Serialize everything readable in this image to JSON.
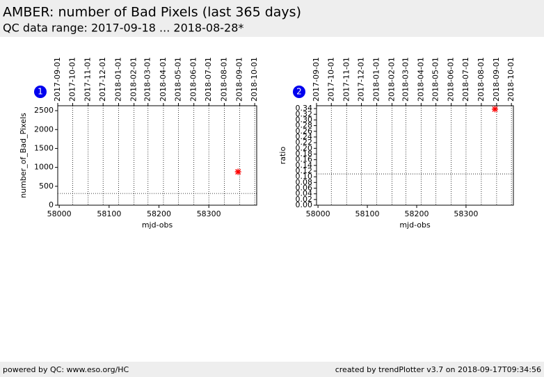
{
  "header": {
    "title": "AMBER: number of Bad Pixels (last 365 days)",
    "subtitle": "QC data range: 2017-09-18 ... 2018-08-28*"
  },
  "footer": {
    "left": "powered by QC: www.eso.org/HC",
    "right": "created by trendPlotter v3.7 on 2018-09-17T09:34:56"
  },
  "chart_data": [
    {
      "type": "scatter",
      "badge": "1",
      "xlabel": "mjd-obs",
      "ylabel": "number_of_Bad_Pixels",
      "xlim": [
        57997,
        58396
      ],
      "xticks": [
        58000,
        58100,
        58200,
        58300
      ],
      "x2ticks": [
        {
          "value": 57997,
          "label": "2017-09-01"
        },
        {
          "value": 58027,
          "label": "2017-10-01"
        },
        {
          "value": 58058,
          "label": "2017-11-01"
        },
        {
          "value": 58088,
          "label": "2017-12-01"
        },
        {
          "value": 58119,
          "label": "2018-01-01"
        },
        {
          "value": 58150,
          "label": "2018-02-01"
        },
        {
          "value": 58178,
          "label": "2018-03-01"
        },
        {
          "value": 58209,
          "label": "2018-04-01"
        },
        {
          "value": 58239,
          "label": "2018-05-01"
        },
        {
          "value": 58270,
          "label": "2018-06-01"
        },
        {
          "value": 58300,
          "label": "2018-07-01"
        },
        {
          "value": 58331,
          "label": "2018-08-01"
        },
        {
          "value": 58362,
          "label": "2018-09-01"
        },
        {
          "value": 58392,
          "label": "2018-10-01"
        }
      ],
      "ylim": [
        0,
        2630
      ],
      "yticks": [
        0,
        500,
        1000,
        1500,
        2000,
        2500
      ],
      "reference_line": 310,
      "grid": true,
      "color": "#ff0000",
      "x": [
        58358.6
      ],
      "values": [
        882
      ]
    },
    {
      "type": "scatter",
      "badge": "2",
      "xlabel": "mjd-obs",
      "ylabel": "ratio",
      "xlim": [
        57997,
        58396
      ],
      "xticks": [
        58000,
        58100,
        58200,
        58300
      ],
      "x2ticks": [
        {
          "value": 57997,
          "label": "2017-09-01"
        },
        {
          "value": 58027,
          "label": "2017-10-01"
        },
        {
          "value": 58058,
          "label": "2017-11-01"
        },
        {
          "value": 58088,
          "label": "2017-12-01"
        },
        {
          "value": 58119,
          "label": "2018-01-01"
        },
        {
          "value": 58150,
          "label": "2018-02-01"
        },
        {
          "value": 58178,
          "label": "2018-03-01"
        },
        {
          "value": 58209,
          "label": "2018-04-01"
        },
        {
          "value": 58239,
          "label": "2018-05-01"
        },
        {
          "value": 58270,
          "label": "2018-06-01"
        },
        {
          "value": 58300,
          "label": "2018-07-01"
        },
        {
          "value": 58331,
          "label": "2018-08-01"
        },
        {
          "value": 58362,
          "label": "2018-09-01"
        },
        {
          "value": 58392,
          "label": "2018-10-01"
        }
      ],
      "ylim": [
        0,
        0.35
      ],
      "yticks": [
        {
          "value": 0,
          "label": "0.00"
        },
        {
          "value": 0.02,
          "label": "0.02"
        },
        {
          "value": 0.04,
          "label": "0.04"
        },
        {
          "value": 0.06,
          "label": "0.06"
        },
        {
          "value": 0.08,
          "label": "0.08"
        },
        {
          "value": 0.1,
          "label": "0.10"
        },
        {
          "value": 0.12,
          "label": "0.12"
        },
        {
          "value": 0.14,
          "label": "0.14"
        },
        {
          "value": 0.16,
          "label": "0.16"
        },
        {
          "value": 0.18,
          "label": "0.18"
        },
        {
          "value": 0.2,
          "label": "0.20"
        },
        {
          "value": 0.22,
          "label": "0.22"
        },
        {
          "value": 0.24,
          "label": "0.24"
        },
        {
          "value": 0.26,
          "label": "0.26"
        },
        {
          "value": 0.28,
          "label": "0.28"
        },
        {
          "value": 0.3,
          "label": "0.30"
        },
        {
          "value": 0.32,
          "label": "0.32"
        },
        {
          "value": 0.34,
          "label": "0.34"
        }
      ],
      "reference_line": 0.11,
      "grid": true,
      "color": "#ff0000",
      "x": [
        58358.6
      ],
      "values": [
        0.338
      ]
    }
  ]
}
